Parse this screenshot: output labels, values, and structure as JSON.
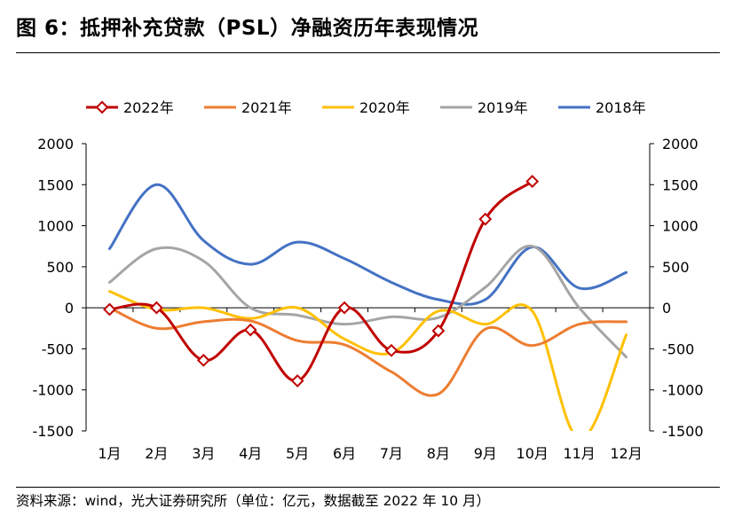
{
  "header": {
    "title": "图 6：抵押补充贷款（PSL）净融资历年表现情况"
  },
  "footer": {
    "source": "资料来源：wind，光大证券研究所（单位：亿元，数据截至 2022 年 10 月）"
  },
  "chart_data": {
    "type": "line",
    "title": "图 6：抵押补充贷款（PSL）净融资历年表现情况",
    "xlabel": "",
    "ylabel": "",
    "unit": "亿元",
    "categories": [
      "1月",
      "2月",
      "3月",
      "4月",
      "5月",
      "6月",
      "7月",
      "8月",
      "9月",
      "10月",
      "11月",
      "12月"
    ],
    "ylim": [
      -1500,
      2000
    ],
    "yticks": [
      -1500,
      -1000,
      -500,
      0,
      500,
      1000,
      1500,
      2000
    ],
    "secondary_axis": true,
    "legend_position": "top",
    "grid": false,
    "series": [
      {
        "name": "2022年",
        "color": "#C00000",
        "marker": "diamond",
        "values": [
          -20,
          0,
          -640,
          -270,
          -890,
          0,
          -520,
          -280,
          1080,
          1540,
          null,
          null
        ]
      },
      {
        "name": "2021年",
        "color": "#ED7D31",
        "marker": "none",
        "values": [
          0,
          -250,
          -170,
          -160,
          -400,
          -450,
          -780,
          -1050,
          -260,
          -460,
          -200,
          -170
        ]
      },
      {
        "name": "2020年",
        "color": "#FFC000",
        "marker": "none",
        "values": [
          200,
          -20,
          0,
          -130,
          0,
          -380,
          -550,
          -40,
          -200,
          -40,
          -1600,
          -330
        ]
      },
      {
        "name": "2019年",
        "color": "#A5A5A5",
        "marker": "none",
        "values": [
          310,
          720,
          570,
          0,
          -90,
          -200,
          -110,
          -120,
          250,
          750,
          0,
          -600
        ]
      },
      {
        "name": "2018年",
        "color": "#4472C4",
        "marker": "none",
        "values": [
          720,
          1500,
          820,
          530,
          800,
          600,
          310,
          100,
          100,
          740,
          240,
          430
        ]
      }
    ]
  }
}
